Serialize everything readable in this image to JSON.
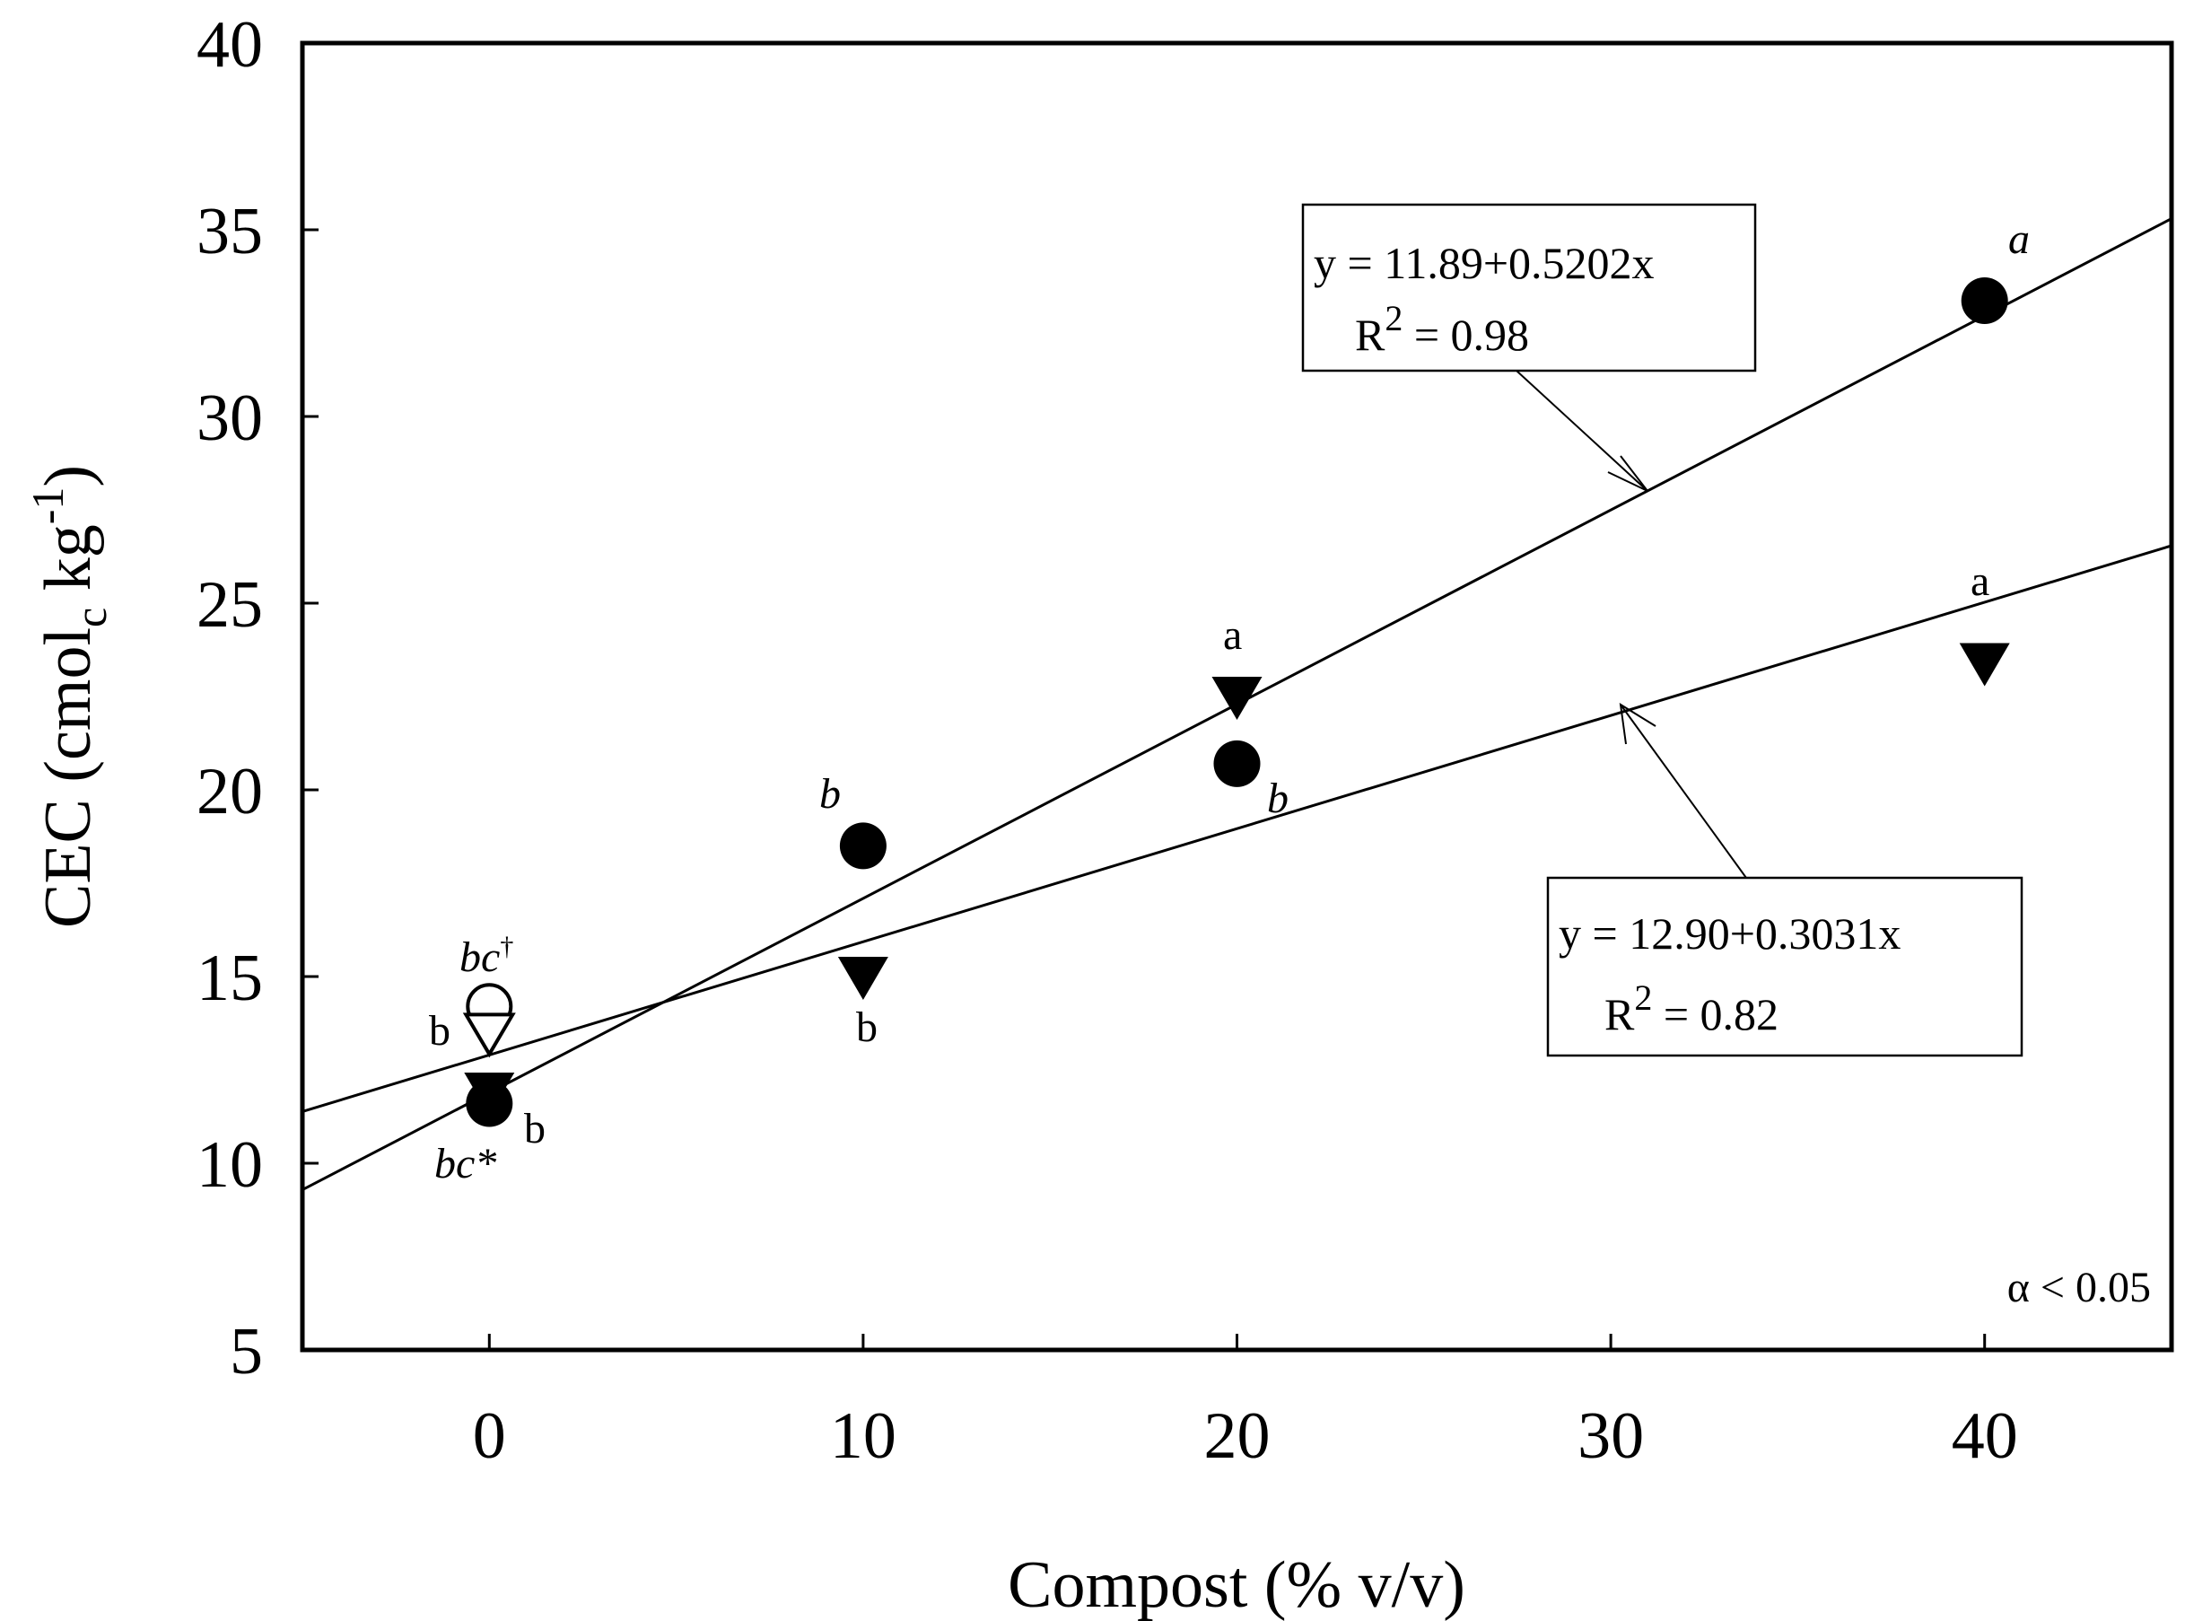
{
  "chart_data": {
    "type": "scatter",
    "xlabel": "Compost (% v/v)",
    "ylabel_main": "CEC (cmol",
    "ylabel_sub": "c",
    "ylabel_mid": " kg",
    "ylabel_sup": "-1",
    "ylabel_end": ")",
    "xlim": [
      -5,
      45
    ],
    "ylim": [
      5,
      40
    ],
    "xticks": [
      0,
      10,
      20,
      30,
      40
    ],
    "xtick_labels": [
      "0",
      "10",
      "20",
      "30",
      "40"
    ],
    "yticks": [
      5,
      10,
      15,
      20,
      25,
      30,
      35,
      40
    ],
    "ytick_labels": [
      "5",
      "10",
      "15",
      "20",
      "25",
      "30",
      "35",
      "40"
    ],
    "grid": false,
    "series": [
      {
        "name": "circle",
        "marker": "filled-circle",
        "points": [
          {
            "x": 0,
            "y": 11.6,
            "label": "bc*"
          },
          {
            "x": 10,
            "y": 18.5,
            "label": "b"
          },
          {
            "x": 20,
            "y": 20.7,
            "label": "b"
          },
          {
            "x": 40,
            "y": 33.1,
            "label": "a"
          }
        ],
        "fit": {
          "intercept": 11.89,
          "slope": 0.5202,
          "equation": "y = 11.89+0.5202x",
          "r2_prefix": "R",
          "r2_sup": "2",
          "r2_value": " = 0.98"
        }
      },
      {
        "name": "triangle",
        "marker": "filled-triangle-down",
        "points": [
          {
            "x": 0,
            "y": 11.9,
            "label": "b"
          },
          {
            "x": 10,
            "y": 15.0,
            "label": "b"
          },
          {
            "x": 20,
            "y": 22.5,
            "label": "a"
          },
          {
            "x": 40,
            "y": 23.4,
            "label": "a"
          }
        ],
        "fit": {
          "intercept": 12.9,
          "slope": 0.3031,
          "equation": "y = 12.90+0.3031x",
          "r2_prefix": "R",
          "r2_sup": "2",
          "r2_value": " = 0.82"
        }
      },
      {
        "name": "open-circle",
        "marker": "open-circle",
        "points": [
          {
            "x": 0,
            "y": 14.2,
            "label": "bc",
            "label_sup": "†"
          }
        ]
      },
      {
        "name": "open-triangle",
        "marker": "open-triangle-down",
        "points": [
          {
            "x": 0,
            "y": 13.5,
            "label": "b"
          }
        ]
      }
    ],
    "annotation": "α < 0.05"
  }
}
